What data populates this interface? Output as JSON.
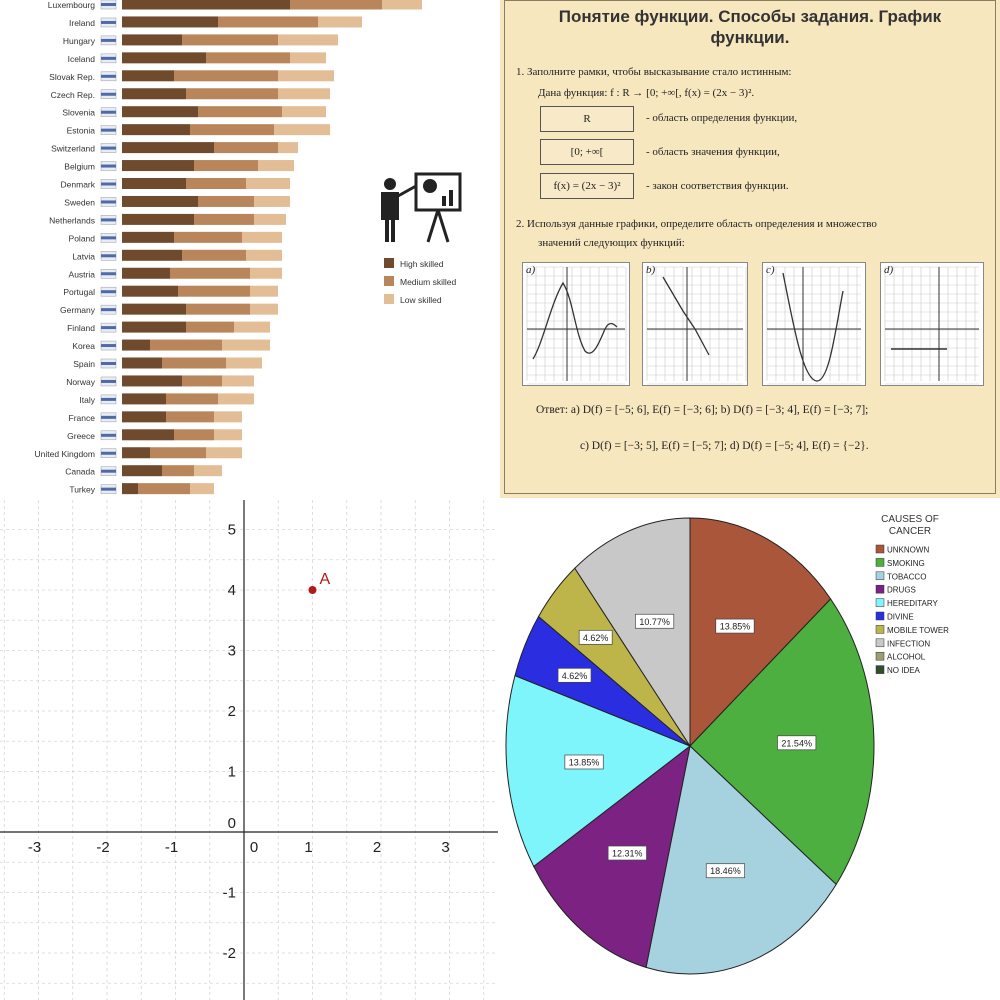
{
  "panel_bar": {
    "legend": [
      "High skilled",
      "Medium skilled",
      "Low skilled"
    ],
    "colors": [
      "#6f4a2c",
      "#b9865b",
      "#e2bd96"
    ],
    "icon": "presenter-with-chart-icon"
  },
  "panel_doc": {
    "title_line1": "Понятие функции. Способы задания. График",
    "title_line2": "функции.",
    "q1_text": "1.  Заполните рамки, чтобы высказывание стало истинным:",
    "q1_given": "Дана функция:  f : R → [0; +∞[,    f(x) = (2x − 3)².",
    "box1": "R",
    "box1_desc": "- область определения функции,",
    "box2": "[0; +∞[",
    "box2_desc": "- область значения функции,",
    "box3": "f(x) = (2x − 3)²",
    "box3_desc": "- закон соответствия функции.",
    "q2_text1": "2.  Используя данные графики, определите область определения и множество",
    "q2_text2": "значений следующих функций:",
    "graph_labels": [
      "a)",
      "b)",
      "c)",
      "d)"
    ],
    "answer_line1": "Ответ:  a)  D(f) = [−5; 6],   E(f) = [−3; 6];      b)  D(f) = [−3; 4],    E(f) = [−3; 7];",
    "answer_line2": "c)  D(f) = [−3; 5],   E(f) = [−5; 7];      d)  D(f) = [−5; 4],    E(f) = {−2}."
  },
  "panel_grid": {
    "point_label": "A",
    "point_color": "#b01a1a"
  },
  "panel_pie": {
    "legend_title": "CAUSES OF CANCER"
  },
  "chart_data": [
    {
      "type": "bar",
      "stacked": true,
      "orientation": "horizontal",
      "categories": [
        "Luxembourg",
        "Ireland",
        "Hungary",
        "Iceland",
        "Slovak Rep.",
        "Czech Rep.",
        "Slovenia",
        "Estonia",
        "Switzerland",
        "Belgium",
        "Denmark",
        "Sweden",
        "Netherlands",
        "Poland",
        "Latvia",
        "Austria",
        "Portugal",
        "Germany",
        "Finland",
        "Korea",
        "Spain",
        "Norway",
        "Italy",
        "France",
        "Greece",
        "United Kingdom",
        "Canada",
        "Turkey"
      ],
      "series": [
        {
          "name": "High skilled",
          "values": [
            4.2,
            2.4,
            1.5,
            2.1,
            1.3,
            1.6,
            1.9,
            1.7,
            2.3,
            1.8,
            1.6,
            1.9,
            1.8,
            1.3,
            1.5,
            1.2,
            1.4,
            1.6,
            1.6,
            0.7,
            1.0,
            1.5,
            1.1,
            1.1,
            1.3,
            0.7,
            1.0,
            0.4
          ]
        },
        {
          "name": "Medium skilled",
          "values": [
            2.3,
            2.5,
            2.4,
            2.1,
            2.6,
            2.3,
            2.1,
            2.1,
            1.6,
            1.6,
            1.5,
            1.4,
            1.5,
            1.7,
            1.6,
            2.0,
            1.8,
            1.6,
            1.2,
            1.8,
            1.6,
            1.0,
            1.3,
            1.2,
            1.0,
            1.4,
            0.8,
            1.3
          ]
        },
        {
          "name": "Low skilled",
          "values": [
            1.0,
            1.1,
            1.5,
            0.9,
            1.4,
            1.3,
            1.1,
            1.4,
            0.5,
            0.9,
            1.1,
            0.9,
            0.8,
            1.0,
            0.9,
            0.8,
            0.7,
            0.7,
            0.9,
            1.2,
            0.9,
            0.8,
            0.9,
            0.7,
            0.7,
            0.9,
            0.7,
            0.6
          ]
        }
      ],
      "legend": "right"
    },
    {
      "type": "scatter",
      "points": [
        {
          "label": "A",
          "x": 1,
          "y": 4
        }
      ],
      "x_ticks": [
        -3,
        -2,
        -1,
        0,
        1,
        2,
        3
      ],
      "y_ticks": [
        -2,
        -1,
        0,
        1,
        2,
        3,
        4,
        5
      ],
      "xlim": [
        -3.6,
        3.7
      ],
      "ylim": [
        -2.6,
        5.5
      ],
      "grid": true
    },
    {
      "type": "pie",
      "title": "CAUSES OF CANCER",
      "labels": [
        "UNKNOWN",
        "SMOKING",
        "TOBACCO",
        "DRUGS",
        "HEREDITARY",
        "DIVINE",
        "MOBILE TOWER",
        "INFECTION",
        "ALCOHOL",
        "NO IDEA"
      ],
      "values": [
        13.85,
        21.54,
        18.46,
        12.31,
        13.85,
        4.62,
        4.62,
        10.77,
        0,
        0
      ],
      "value_labels": [
        "13.85%",
        "21.54%",
        "18.46%",
        "12.31%",
        "13.85%",
        "4.62%",
        "4.62%",
        "10.77%",
        "",
        ""
      ],
      "colors": [
        "#a9563a",
        "#4caf3f",
        "#a6d1de",
        "#7b2283",
        "#7ef5fb",
        "#2a2ee0",
        "#bdb54a",
        "#c8c8c8",
        "#9e9e6e",
        "#2f4f2a"
      ],
      "legend": "top-right"
    }
  ]
}
